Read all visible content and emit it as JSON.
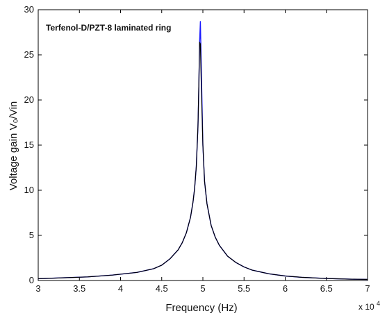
{
  "chart_data": {
    "type": "line",
    "annotation": "Terfenol-D/PZT-8 laminated ring",
    "xlabel": "Frequency (Hz)",
    "ylabel": "Voltage gain V₀/Vin",
    "x_multiplier": "x 10",
    "x_multiplier_exp": "4",
    "xlim": [
      30000,
      70000
    ],
    "ylim": [
      0,
      30
    ],
    "x_ticks": [
      30000,
      35000,
      40000,
      45000,
      50000,
      55000,
      60000,
      65000,
      70000
    ],
    "x_tick_labels": [
      "3",
      "3.5",
      "4",
      "4.5",
      "5",
      "5.5",
      "6",
      "6.5",
      "7"
    ],
    "y_ticks": [
      0,
      5,
      10,
      15,
      20,
      25,
      30
    ],
    "y_tick_labels": [
      "0",
      "5",
      "10",
      "15",
      "20",
      "25",
      "30"
    ],
    "grid": false,
    "series": [
      {
        "color": "#1a1aff",
        "x": [
          30000,
          33000,
          36000,
          39000,
          42000,
          44000,
          45000,
          46000,
          47000,
          47500,
          48000,
          48500,
          48800,
          49000,
          49200,
          49400,
          49500,
          49600,
          49700,
          49800,
          50000,
          50200,
          50500,
          51000,
          51500,
          52000,
          53000,
          54000,
          55000,
          56000,
          58000,
          60000,
          62000,
          65000,
          68000,
          70000
        ],
        "y": [
          0.2,
          0.3,
          0.4,
          0.6,
          0.9,
          1.3,
          1.7,
          2.4,
          3.4,
          4.2,
          5.3,
          7.0,
          8.7,
          10.2,
          12.6,
          17.0,
          21.0,
          26.5,
          28.7,
          24.0,
          15.0,
          11.0,
          8.5,
          6.1,
          4.8,
          3.9,
          2.7,
          2.0,
          1.5,
          1.15,
          0.75,
          0.5,
          0.35,
          0.22,
          0.15,
          0.12
        ]
      },
      {
        "color": "#000000",
        "x": [
          30000,
          33000,
          36000,
          39000,
          42000,
          44000,
          45000,
          46000,
          47000,
          47500,
          48000,
          48500,
          48800,
          49000,
          49200,
          49400,
          49500,
          49600,
          49700,
          49800,
          50000,
          50200,
          50500,
          51000,
          51500,
          52000,
          53000,
          54000,
          55000,
          56000,
          58000,
          60000,
          62000,
          65000,
          68000,
          70000
        ],
        "y": [
          0.2,
          0.3,
          0.4,
          0.6,
          0.9,
          1.3,
          1.7,
          2.4,
          3.4,
          4.2,
          5.3,
          7.0,
          8.7,
          10.2,
          12.6,
          17.0,
          21.5,
          26.4,
          26.2,
          22.0,
          15.0,
          11.0,
          8.5,
          6.1,
          4.8,
          3.9,
          2.7,
          2.0,
          1.5,
          1.15,
          0.75,
          0.5,
          0.35,
          0.22,
          0.15,
          0.12
        ]
      }
    ]
  }
}
